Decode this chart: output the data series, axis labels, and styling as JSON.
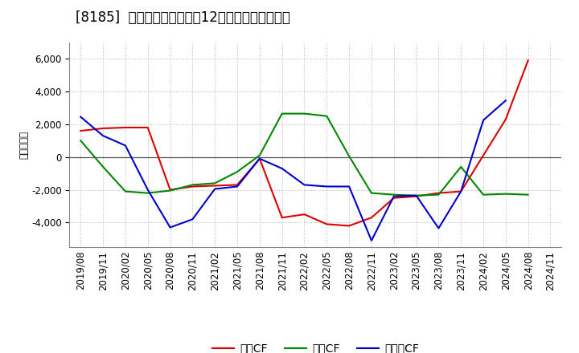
{
  "title": "[8185]  キャッシュフローの12か月移動合計の推移",
  "ylabel": "（百万円）",
  "background_color": "#ffffff",
  "plot_bg_color": "#ffffff",
  "grid_color": "#aaaaaa",
  "x_labels": [
    "2019/08",
    "2019/11",
    "2020/02",
    "2020/05",
    "2020/08",
    "2020/11",
    "2021/02",
    "2021/05",
    "2021/08",
    "2021/11",
    "2022/02",
    "2022/05",
    "2022/08",
    "2022/11",
    "2023/02",
    "2023/05",
    "2023/08",
    "2023/11",
    "2024/02",
    "2024/05",
    "2024/08",
    "2024/11"
  ],
  "series_order": [
    "営業CF",
    "投資CF",
    "フリーCF"
  ],
  "series": {
    "営業CF": {
      "color": "#dd0000",
      "values": [
        1600,
        1750,
        1800,
        1800,
        -2000,
        -1800,
        -1750,
        -1700,
        -100,
        -3700,
        -3500,
        -4100,
        -4200,
        -3700,
        -2500,
        -2400,
        -2200,
        -2100,
        100,
        2300,
        5900,
        null
      ]
    },
    "投資CF": {
      "color": "#008800",
      "values": [
        1000,
        -600,
        -2100,
        -2200,
        -2050,
        -1700,
        -1600,
        -900,
        100,
        2650,
        2650,
        2500,
        50,
        -2200,
        -2300,
        -2350,
        -2300,
        -600,
        -2300,
        -2250,
        -2300,
        null
      ]
    },
    "フリーCF": {
      "color": "#0000cc",
      "values": [
        2450,
        1300,
        700,
        -2000,
        -4300,
        -3800,
        -1950,
        -1800,
        -100,
        -700,
        -1700,
        -1800,
        -1800,
        -5100,
        -2400,
        -2350,
        -4350,
        -2100,
        2250,
        3450,
        null,
        null
      ]
    }
  },
  "ylim": [
    -5500,
    7000
  ],
  "yticks": [
    -4000,
    -2000,
    0,
    2000,
    4000,
    6000
  ],
  "title_fontsize": 12,
  "axis_fontsize": 8.5,
  "legend_fontsize": 10
}
